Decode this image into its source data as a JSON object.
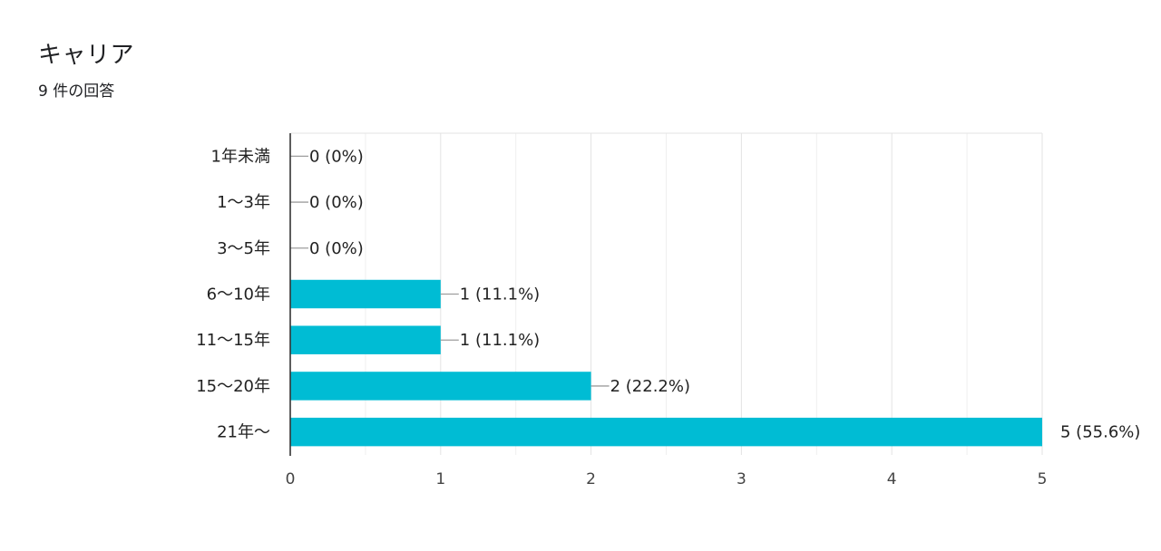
{
  "header": {
    "title": "キャリア",
    "subtitle": "9 件の回答"
  },
  "chart_data": {
    "type": "bar",
    "orientation": "horizontal",
    "categories": [
      "1年未満",
      "1〜3年",
      "3〜5年",
      "6〜10年",
      "11〜15年",
      "15〜20年",
      "21年〜"
    ],
    "values": [
      0,
      0,
      0,
      1,
      1,
      2,
      5
    ],
    "data_labels": [
      "0 (0%)",
      "0 (0%)",
      "0 (0%)",
      "1 (11.1%)",
      "1 (11.1%)",
      "2 (22.2%)",
      "5 (55.6%)"
    ],
    "x_ticks": [
      "0",
      "1",
      "2",
      "3",
      "4",
      "5"
    ],
    "xlim": [
      0,
      5
    ],
    "grid": true,
    "bar_color": "#00BCD4"
  }
}
